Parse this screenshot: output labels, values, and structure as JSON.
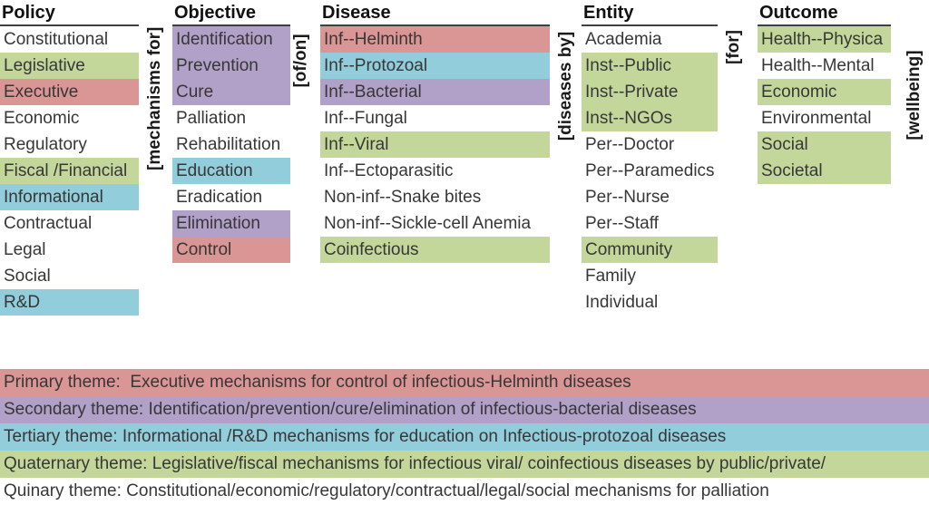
{
  "colors": {
    "red": "#d99694",
    "purple": "#b1a0c7",
    "blue": "#92cddc",
    "green": "#c4d79b"
  },
  "columns": [
    {
      "header": "Policy",
      "connector": "[mechanisms for]",
      "items": [
        {
          "label": "Constitutional",
          "highlight": null
        },
        {
          "label": "Legislative",
          "highlight": "green"
        },
        {
          "label": "Executive",
          "highlight": "red"
        },
        {
          "label": "Economic",
          "highlight": null
        },
        {
          "label": "Regulatory",
          "highlight": null
        },
        {
          "label": "Fiscal /Financial",
          "highlight": "green"
        },
        {
          "label": "Informational",
          "highlight": "blue"
        },
        {
          "label": "Contractual",
          "highlight": null
        },
        {
          "label": "Legal",
          "highlight": null
        },
        {
          "label": "Social",
          "highlight": null
        },
        {
          "label": "R&D",
          "highlight": "blue"
        }
      ]
    },
    {
      "header": "Objective",
      "connector": "[of/on]",
      "items": [
        {
          "label": "Identification",
          "highlight": "purple"
        },
        {
          "label": "Prevention",
          "highlight": "purple"
        },
        {
          "label": "Cure",
          "highlight": "purple"
        },
        {
          "label": "Palliation",
          "highlight": null
        },
        {
          "label": "Rehabilitation",
          "highlight": null
        },
        {
          "label": "Education",
          "highlight": "blue"
        },
        {
          "label": "Eradication",
          "highlight": null
        },
        {
          "label": "Elimination",
          "highlight": "purple"
        },
        {
          "label": "Control",
          "highlight": "red"
        }
      ]
    },
    {
      "header": "Disease",
      "connector": "[diseases by]",
      "items": [
        {
          "label": "Inf--Helminth",
          "highlight": "red"
        },
        {
          "label": "Inf--Protozoal",
          "highlight": "blue"
        },
        {
          "label": "Inf--Bacterial",
          "highlight": "purple"
        },
        {
          "label": "Inf--Fungal",
          "highlight": null
        },
        {
          "label": "Inf--Viral",
          "highlight": "green"
        },
        {
          "label": "Inf--Ectoparasitic",
          "highlight": null
        },
        {
          "label": "Non-inf--Snake bites",
          "highlight": null
        },
        {
          "label": "Non-inf--Sickle-cell Anemia",
          "highlight": null
        },
        {
          "label": "Coinfectious",
          "highlight": "green"
        }
      ]
    },
    {
      "header": "Entity",
      "connector": "[for]",
      "items": [
        {
          "label": "Academia",
          "highlight": null
        },
        {
          "label": "Inst--Public",
          "highlight": "green"
        },
        {
          "label": "Inst--Private",
          "highlight": "green"
        },
        {
          "label": "Inst--NGOs",
          "highlight": "green"
        },
        {
          "label": "Per--Doctor",
          "highlight": null
        },
        {
          "label": "Per--Paramedics",
          "highlight": null
        },
        {
          "label": "Per--Nurse",
          "highlight": null
        },
        {
          "label": "Per--Staff",
          "highlight": null
        },
        {
          "label": "Community",
          "highlight": "green"
        },
        {
          "label": "Family",
          "highlight": null
        },
        {
          "label": "Individual",
          "highlight": null
        }
      ]
    },
    {
      "header": "Outcome",
      "connector": "[wellbeing]",
      "items": [
        {
          "label": "Health--Physica",
          "highlight": "green"
        },
        {
          "label": "Health--Mental",
          "highlight": null
        },
        {
          "label": "Economic",
          "highlight": "green"
        },
        {
          "label": "Environmental",
          "highlight": null
        },
        {
          "label": "Social",
          "highlight": "green"
        },
        {
          "label": "Societal",
          "highlight": "green"
        }
      ]
    }
  ],
  "legend": [
    {
      "label": "Primary theme:  Executive mechanisms for control of infectious-Helminth diseases",
      "highlight": "red"
    },
    {
      "label": "Secondary theme: Identification/prevention/cure/elimination of infectious-bacterial diseases",
      "highlight": "purple"
    },
    {
      "label": "Tertiary theme: Informational /R&D mechanisms for education on Infectious-protozoal diseases",
      "highlight": "blue"
    },
    {
      "label": "Quaternary theme: Legislative/fiscal mechanisms for infectious viral/ coinfectious diseases by public/private/",
      "highlight": "green"
    },
    {
      "label": "Quinary theme: Constitutional/economic/regulatory/contractual/legal/social mechanisms for palliation",
      "highlight": null
    }
  ]
}
